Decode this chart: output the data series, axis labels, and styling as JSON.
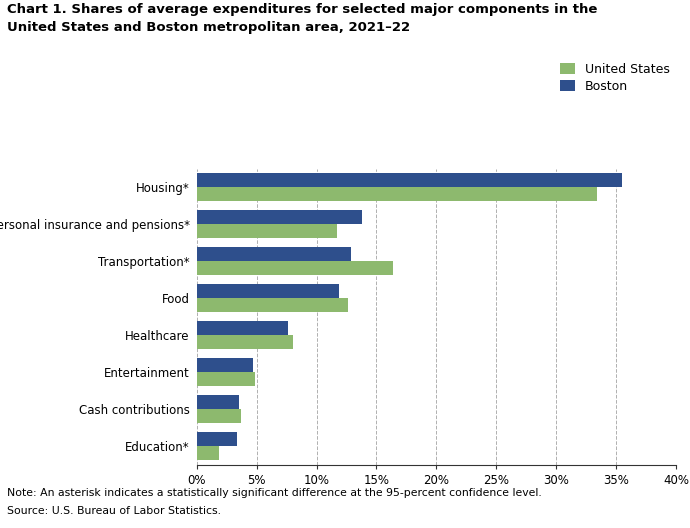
{
  "title_line1": "Chart 1. Shares of average expenditures for selected major components in the",
  "title_line2": "United States and Boston metropolitan area, 2021–22",
  "categories": [
    "Housing*",
    "Personal insurance and pensions*",
    "Transportation*",
    "Food",
    "Healthcare",
    "Entertainment",
    "Cash contributions",
    "Education*"
  ],
  "us_values": [
    33.4,
    11.7,
    16.4,
    12.6,
    8.0,
    4.9,
    3.7,
    1.9
  ],
  "boston_values": [
    35.5,
    13.8,
    12.9,
    11.9,
    7.6,
    4.7,
    3.5,
    3.4
  ],
  "us_color": "#8db96e",
  "boston_color": "#2e4f8c",
  "us_label": "United States",
  "boston_label": "Boston",
  "xlim": [
    0,
    40
  ],
  "xticks": [
    0,
    5,
    10,
    15,
    20,
    25,
    30,
    35,
    40
  ],
  "xtick_labels": [
    "0%",
    "5%",
    "10%",
    "15%",
    "20%",
    "25%",
    "30%",
    "35%",
    "40%"
  ],
  "note": "Note: An asterisk indicates a statistically significant difference at the 95-percent confidence level.",
  "source": "Source: U.S. Bureau of Labor Statistics.",
  "grid_color": "#b0b0b0",
  "background_color": "#ffffff"
}
